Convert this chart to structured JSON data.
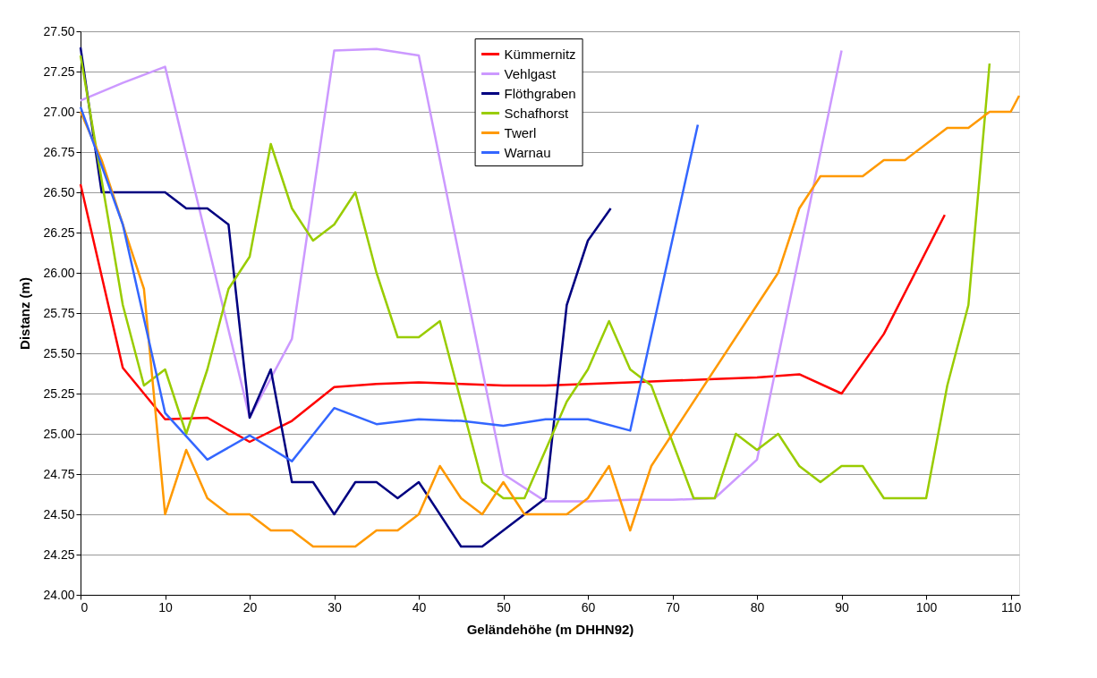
{
  "chart_data": {
    "type": "line",
    "xlabel": "Geländehöhe (m DHHN92)",
    "ylabel": "Distanz (m)",
    "xlim": [
      0,
      111
    ],
    "xticks": [
      0,
      10,
      20,
      30,
      40,
      50,
      60,
      70,
      80,
      90,
      100,
      110
    ],
    "ylim": [
      24,
      27.5
    ],
    "yticks": [
      {
        "value": 24,
        "label": "24.00"
      },
      {
        "value": 24.25,
        "label": "24.25"
      },
      {
        "value": 24.5,
        "label": "24.50"
      },
      {
        "value": 24.75,
        "label": "24.75"
      },
      {
        "value": 25,
        "label": "25.00"
      },
      {
        "value": 25.25,
        "label": "25.25"
      },
      {
        "value": 25.5,
        "label": "25.50"
      },
      {
        "value": 25.75,
        "label": "25.75"
      },
      {
        "value": 26,
        "label": "26.00"
      },
      {
        "value": 26.25,
        "label": "26.25"
      },
      {
        "value": 26.5,
        "label": "26.50"
      },
      {
        "value": 26.75,
        "label": "26.75"
      },
      {
        "value": 27,
        "label": "27.00"
      },
      {
        "value": 27.25,
        "label": "27.25"
      },
      {
        "value": 27.5,
        "label": "27.50"
      }
    ],
    "grid": "y",
    "legend": "top",
    "marker": "none",
    "line_style": "solid",
    "series": [
      {
        "name": "Kümmernitz",
        "color": "#ff0000",
        "x": [
          0,
          5,
          10,
          15,
          20,
          25,
          30,
          35,
          40,
          45,
          50,
          55,
          60,
          65,
          70,
          75,
          80,
          85,
          90,
          95,
          102.2
        ],
        "values": [
          26.55,
          25.41,
          25.09,
          25.1,
          24.95,
          25.08,
          25.29,
          25.31,
          25.32,
          25.31,
          25.3,
          25.3,
          25.31,
          25.32,
          25.33,
          25.34,
          25.35,
          25.37,
          25.25,
          25.62,
          26.36
        ]
      },
      {
        "name": "Vehlgast",
        "color": "#cc99ff",
        "x": [
          0,
          5,
          10,
          20,
          25,
          30,
          35,
          40,
          50,
          55,
          60,
          65,
          70,
          75,
          80,
          90
        ],
        "values": [
          27.07,
          27.18,
          27.28,
          25.1,
          25.59,
          27.38,
          27.39,
          27.35,
          24.75,
          24.58,
          24.58,
          24.59,
          24.59,
          24.6,
          24.84,
          27.38
        ]
      },
      {
        "name": "Flöthgraben",
        "color": "#000080",
        "x": [
          0,
          2.5,
          5,
          10,
          12.5,
          15,
          17.5,
          20,
          22.5,
          25,
          27.5,
          30,
          32.5,
          35,
          37.5,
          40,
          45,
          47.5,
          55,
          57.5,
          60,
          62.7
        ],
        "values": [
          27.4,
          26.5,
          26.5,
          26.5,
          26.4,
          26.4,
          26.3,
          25.1,
          25.4,
          24.7,
          24.7,
          24.5,
          24.7,
          24.7,
          24.6,
          24.7,
          24.3,
          24.3,
          24.6,
          25.8,
          26.2,
          26.4
        ]
      },
      {
        "name": "Schafhorst",
        "color": "#99cc00",
        "x": [
          0,
          5,
          7.5,
          10,
          12.5,
          15,
          17.5,
          20,
          22.5,
          25,
          27.5,
          30,
          32.5,
          35,
          37.5,
          40,
          42.5,
          47.5,
          50,
          52.5,
          57.5,
          60,
          62.5,
          65,
          67.5,
          72.5,
          75,
          77.5,
          80,
          82.5,
          85,
          87.5,
          90,
          92.5,
          95,
          100,
          102.5,
          105,
          107.5
        ],
        "values": [
          27.35,
          25.8,
          25.3,
          25.4,
          25.0,
          25.4,
          25.9,
          26.1,
          26.8,
          26.4,
          26.2,
          26.3,
          26.5,
          26.0,
          25.6,
          25.6,
          25.7,
          24.7,
          24.6,
          24.6,
          25.2,
          25.4,
          25.7,
          25.4,
          25.3,
          24.6,
          24.6,
          25.0,
          24.9,
          25.0,
          24.8,
          24.7,
          24.8,
          24.8,
          24.6,
          24.6,
          25.3,
          25.8,
          27.3
        ]
      },
      {
        "name": "Twerl",
        "color": "#ff9900",
        "x": [
          0,
          2.5,
          5,
          7.5,
          10,
          12.5,
          15,
          17.5,
          20,
          22.5,
          25,
          27.5,
          30,
          32.5,
          35,
          37.5,
          40,
          42.5,
          45,
          47.5,
          50,
          52.5,
          55,
          57.5,
          60,
          62.5,
          65,
          67.5,
          70,
          80,
          82.5,
          85,
          87.5,
          90,
          92.5,
          95,
          97.5,
          102.5,
          105,
          107.5,
          110,
          111
        ],
        "values": [
          27.0,
          26.7,
          26.3,
          25.9,
          24.5,
          24.9,
          24.6,
          24.5,
          24.5,
          24.4,
          24.4,
          24.3,
          24.3,
          24.3,
          24.4,
          24.4,
          24.5,
          24.8,
          24.6,
          24.5,
          24.7,
          24.5,
          24.5,
          24.5,
          24.6,
          24.8,
          24.4,
          24.8,
          25.0,
          25.8,
          26.0,
          26.4,
          26.6,
          26.6,
          26.6,
          26.7,
          26.7,
          26.9,
          26.9,
          27.0,
          27.0,
          27.1
        ]
      },
      {
        "name": "Warnau",
        "color": "#3366ff",
        "x": [
          0,
          5,
          10,
          15,
          20,
          25,
          30,
          35,
          40,
          45,
          50,
          55,
          60,
          65,
          73
        ],
        "values": [
          27.03,
          26.3,
          25.13,
          24.84,
          24.99,
          24.83,
          25.16,
          25.06,
          25.09,
          25.08,
          25.05,
          25.09,
          25.09,
          25.02,
          26.92
        ]
      }
    ]
  }
}
